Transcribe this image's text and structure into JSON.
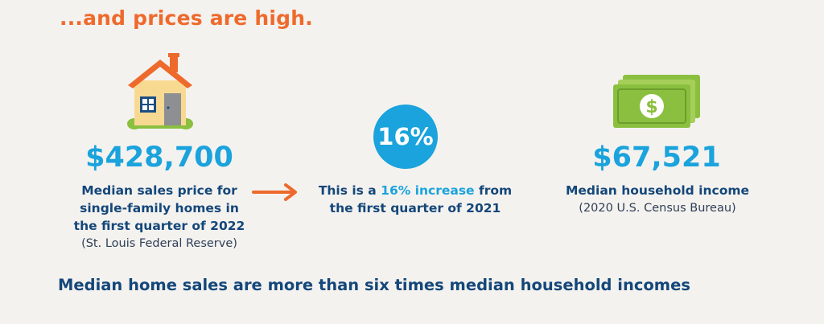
{
  "heading": "...and prices are high.",
  "left": {
    "value": "$428,700",
    "desc_lines": [
      "Median sales price for",
      "single-family homes in",
      "the first quarter of 2022"
    ],
    "source": "(St. Louis Federal Reserve)",
    "icon": "house-icon"
  },
  "middle": {
    "badge": "16%",
    "desc_pre": "This is a ",
    "desc_highlight": "16% increase",
    "desc_post": " from",
    "desc_line2": "the first quarter of 2021",
    "icon": "right-arrow-icon"
  },
  "right": {
    "value": "$67,521",
    "desc": "Median household income",
    "source": "(2020 U.S. Census Bureau)",
    "icon": "money-icon"
  },
  "footer": "Median home sales are more than six times median household incomes",
  "colors": {
    "accent_orange": "#ee6a2c",
    "accent_blue": "#1aa3dc",
    "navy": "#14477a",
    "money_green": "#8bbf3f"
  }
}
